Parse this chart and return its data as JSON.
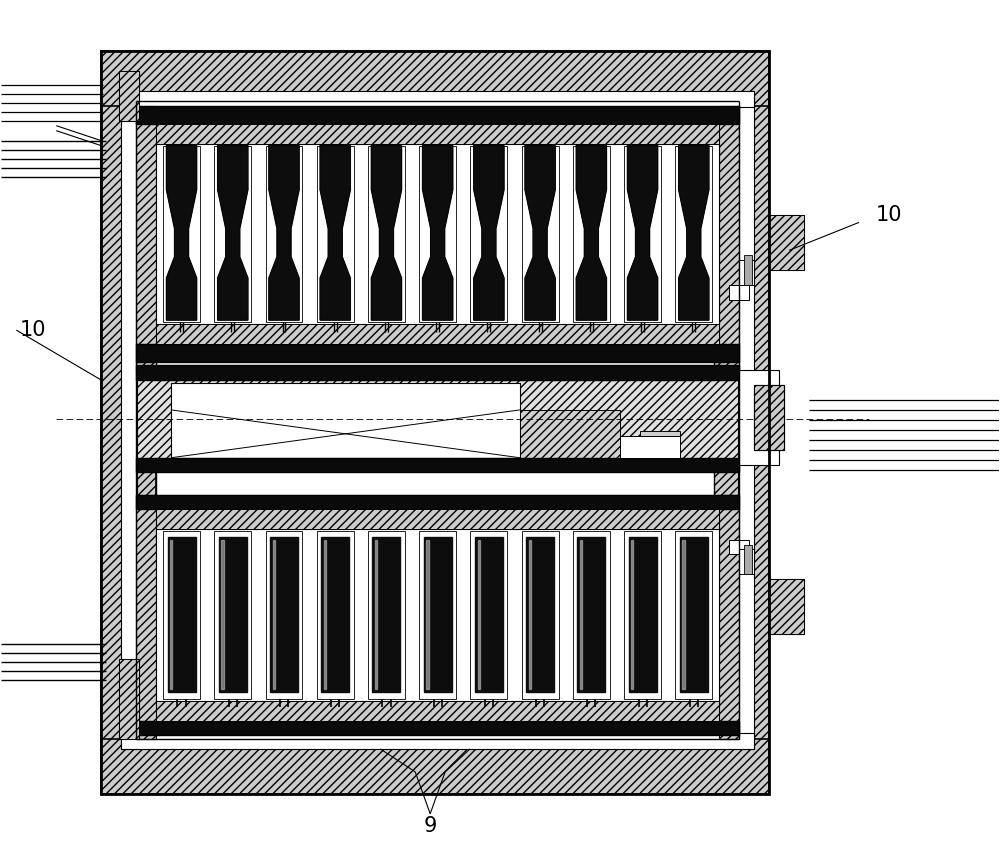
{
  "bg_color": "#ffffff",
  "label_9": "9",
  "label_10": "10",
  "fig_width": 10.0,
  "fig_height": 8.41,
  "dpi": 100,
  "n_brushes_upper": 11,
  "n_brushes_lower": 11
}
